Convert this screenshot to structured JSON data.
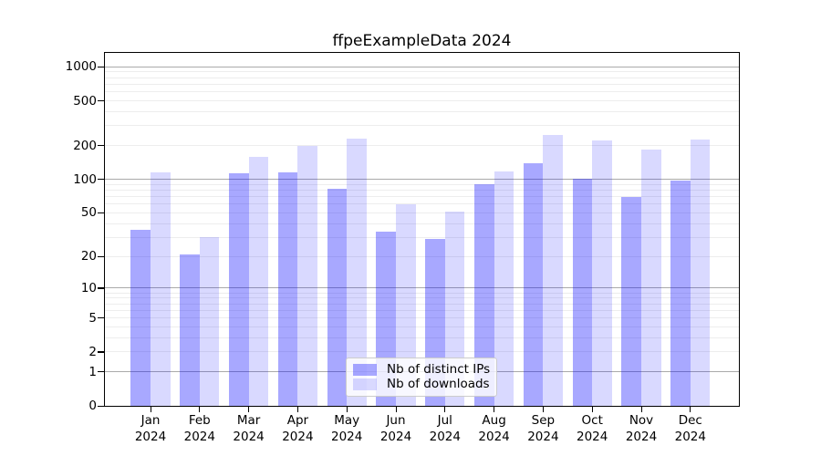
{
  "chart_data": {
    "type": "bar",
    "title": "ffpeExampleData 2024",
    "categories": [
      "Jan",
      "Feb",
      "Mar",
      "Apr",
      "May",
      "Jun",
      "Jul",
      "Aug",
      "Sep",
      "Oct",
      "Nov",
      "Dec"
    ],
    "category_year": "2024",
    "series": [
      {
        "name": "Nb of distinct IPs",
        "color": "rgba(0,0,255,0.34)",
        "values": [
          35,
          21,
          114,
          115,
          82,
          34,
          29,
          90,
          140,
          102,
          70,
          98
        ]
      },
      {
        "name": "Nb of downloads",
        "color": "rgba(0,0,255,0.15)",
        "values": [
          116,
          30,
          160,
          200,
          229,
          60,
          51,
          117,
          247,
          222,
          185,
          227
        ]
      }
    ],
    "yscale": "log1p",
    "yticks": [
      0,
      1,
      2,
      5,
      10,
      20,
      50,
      100,
      200,
      500,
      1000
    ],
    "ylim": [
      0,
      1340
    ],
    "grid": {
      "major_color": "#aaaaaa",
      "minor_color": "#ededed"
    },
    "legend": {
      "position": "lower center"
    }
  },
  "colors": {
    "background": "#ffffff",
    "axis": "#000000",
    "text": "#000000",
    "legend_border": "#cccccc",
    "legend_bg": "rgba(255,255,255,0.8)"
  }
}
